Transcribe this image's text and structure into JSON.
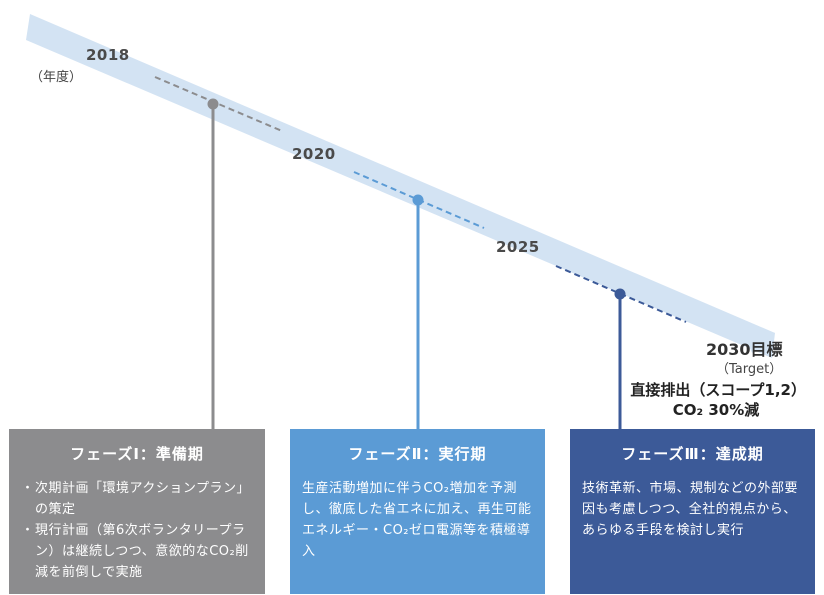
{
  "unit_label": "（年度）",
  "milestones": [
    {
      "year": "2018"
    },
    {
      "year": "2020"
    },
    {
      "year": "2025"
    }
  ],
  "target": {
    "title": "2030目標",
    "subtitle": "（Target）",
    "goal_line1": "直接排出（スコープ1,2）",
    "goal_line2": "CO₂ 30%減"
  },
  "phases": [
    {
      "title": "フェーズⅠ：準備期",
      "color": "#8c8c8e",
      "bullets": [
        "次期計画「環境アクションプラン」の策定",
        "現行計画（第6次ボランタリープラン）は継続しつつ、意欲的なCO₂削減を前倒しで実施"
      ]
    },
    {
      "title": "フェーズⅡ：実行期",
      "color": "#5b9bd5",
      "body": "生産活動増加に伴うCO₂増加を予測し、徹底した省エネに加え、再生可能エネルギー・CO₂ゼロ電源等を積極導入"
    },
    {
      "title": "フェーズⅢ：達成期",
      "color": "#3c5a98",
      "body": "技術革新、市場、規制などの外部要因も考慮しつつ、全社的視点から、あらゆる手段を検討し実行"
    }
  ],
  "colors": {
    "arrow": "#d3e3f3",
    "line_gray": "#8c8c8e",
    "line_light": "#5b9bd5",
    "line_dark": "#3c5a98"
  }
}
